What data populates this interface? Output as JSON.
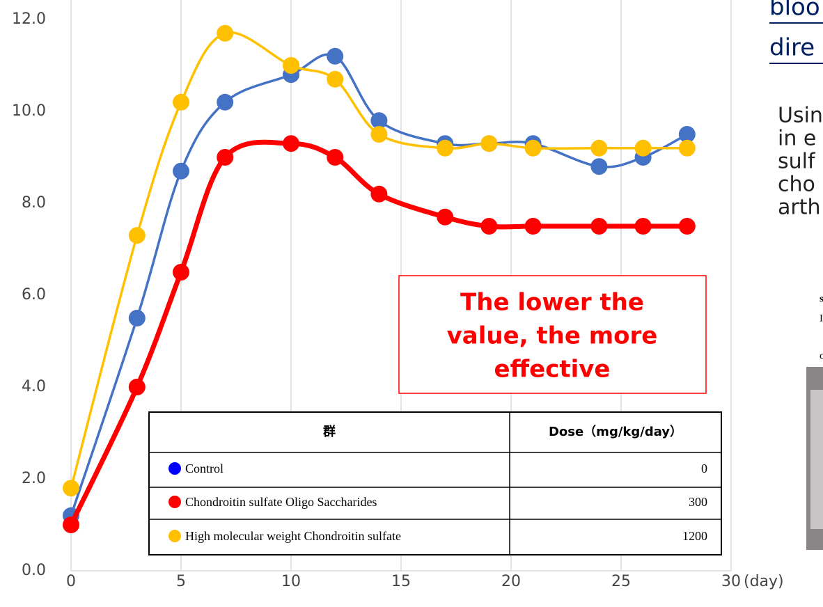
{
  "chart_data": {
    "type": "line",
    "x_label": "(day)",
    "x": [
      0,
      3,
      5,
      7,
      10,
      12,
      14,
      17,
      19,
      21,
      24,
      26,
      28
    ],
    "series": [
      {
        "name": "Control",
        "color": "#4472c4",
        "values": [
          1.2,
          5.5,
          8.7,
          10.2,
          10.8,
          11.2,
          9.8,
          9.3,
          9.3,
          9.3,
          8.8,
          9.0,
          9.5
        ]
      },
      {
        "name": "Chondroitin sulfate Oligo Saccharides",
        "color": "#ff0000",
        "values": [
          1.0,
          4.0,
          6.5,
          9.0,
          9.3,
          9.0,
          8.2,
          7.7,
          7.5,
          7.5,
          7.5,
          7.5,
          7.5
        ]
      },
      {
        "name": "High molecular weight Chondroitin sulfate",
        "color": "#ffc000",
        "values": [
          1.8,
          7.3,
          10.2,
          11.7,
          11.0,
          10.7,
          9.5,
          9.2,
          9.3,
          9.2,
          9.2,
          9.2,
          9.2
        ]
      }
    ],
    "xlim": [
      0,
      30
    ],
    "xticks": [
      0,
      5,
      10,
      15,
      20,
      25,
      30
    ],
    "ylim": [
      0,
      12
    ],
    "yticks": [
      {
        "value": 0,
        "label": "0.0"
      },
      {
        "value": 2,
        "label": "2.0"
      },
      {
        "value": 4,
        "label": "4.0"
      },
      {
        "value": 6,
        "label": "6.0"
      },
      {
        "value": 8,
        "label": "8.0"
      },
      {
        "value": 10,
        "label": "10.0"
      },
      {
        "value": 12,
        "label": "12.0"
      }
    ],
    "grid": "x",
    "annotation": [
      "The lower the",
      "value, the more",
      "effective"
    ],
    "table": {
      "headers": [
        "群",
        "Dose（mg/kg/day）"
      ],
      "legend_colors": [
        "#0000ff",
        "#ff0000",
        "#ffc000"
      ],
      "doses": [
        0,
        300,
        1200
      ]
    }
  },
  "side_text": {
    "heading": [
      "bloo",
      "dire"
    ],
    "body": [
      "Usin",
      "in e",
      "sulf",
      "cho",
      "arth"
    ],
    "caption": [
      "s",
      "I",
      "c"
    ]
  }
}
